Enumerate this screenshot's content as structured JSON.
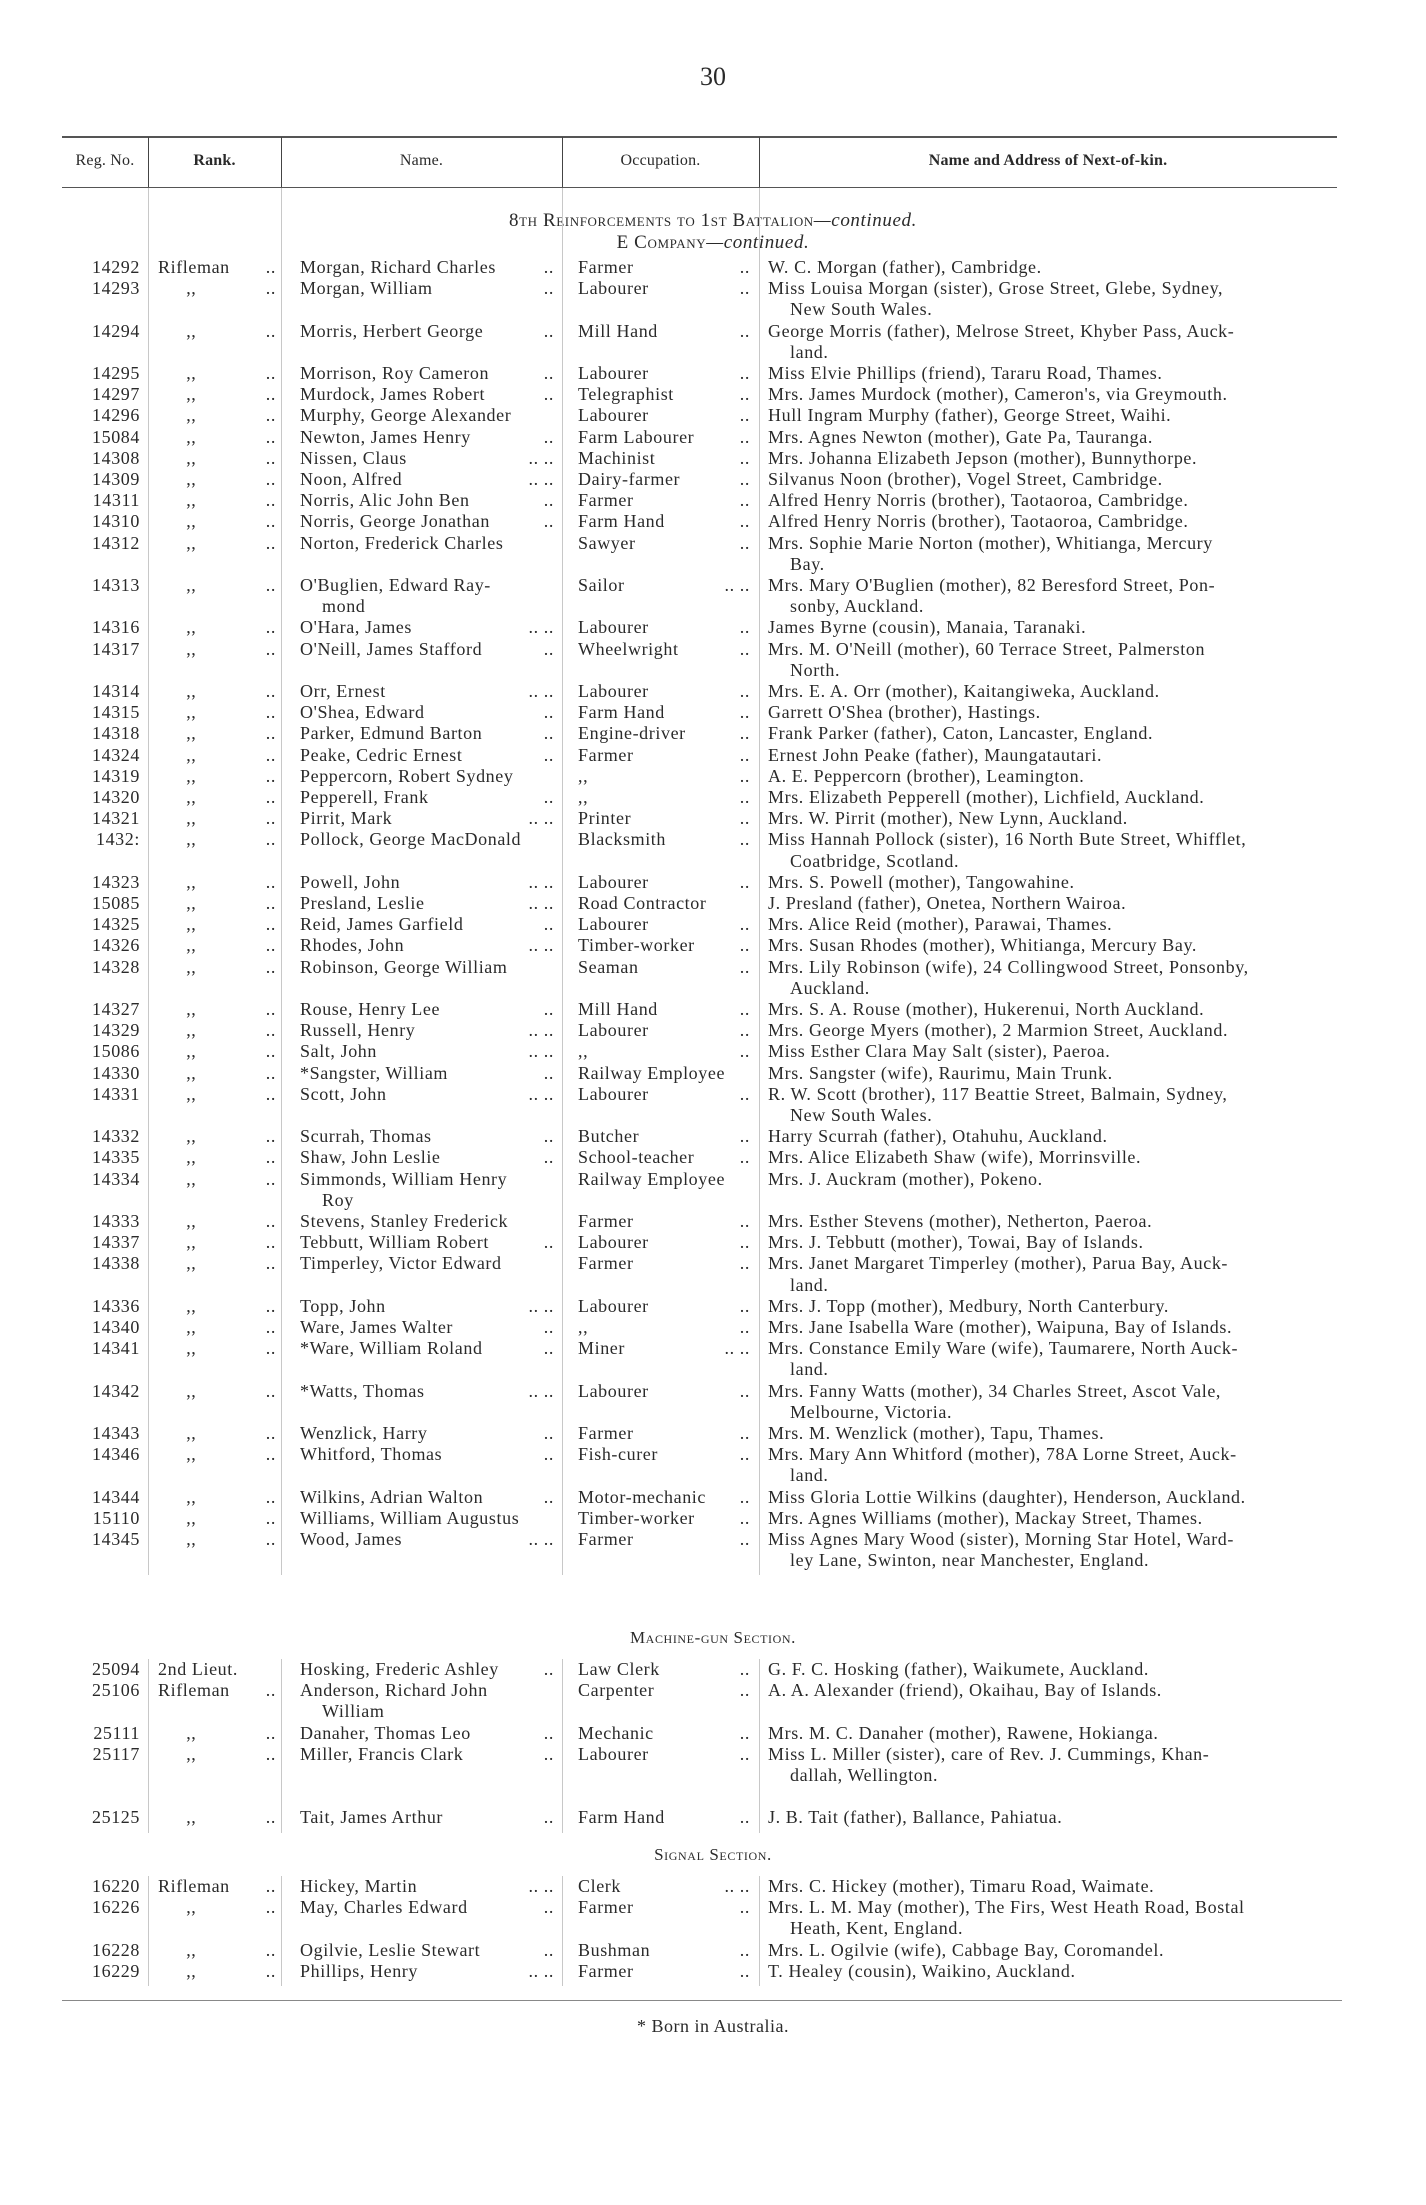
{
  "page_number": "30",
  "columns": {
    "reg_no": "Reg. No.",
    "rank": "Rank.",
    "name": "Name.",
    "occupation": "Occupation.",
    "next_of_kin": "Name and Address of Next-of-kin."
  },
  "heading": {
    "main": "8th Reinforcements to 1st Battalion",
    "main_suffix": "—continued.",
    "company": "E Company",
    "company_suffix": "—continued."
  },
  "sections": [
    {
      "title": "",
      "rows": [
        {
          "reg": "14292",
          "rank": "Rifleman ..",
          "name": [
            "Morgan, Richard Charles.."
          ],
          "occ": "Farmer ..",
          "kin": [
            "W. C. Morgan (father), Cambridge."
          ]
        },
        {
          "reg": "14293",
          "rank": ",, ..",
          "name": [
            "Morgan, William .."
          ],
          "occ": "Labourer ..",
          "kin": [
            "Miss Louisa Morgan (sister), Grose Street, Glebe, Sydney,",
            "New South Wales."
          ]
        },
        {
          "reg": "14294",
          "rank": ",, ..",
          "name": [
            "Morris, Herbert George .."
          ],
          "occ": "Mill Hand ..",
          "kin": [
            "George Morris (father), Melrose Street, Khyber Pass, Auck-",
            "land."
          ]
        },
        {
          "reg": "14295",
          "rank": ",, ..",
          "name": [
            "Morrison, Roy Cameron .."
          ],
          "occ": "Labourer ..",
          "kin": [
            "Miss Elvie Phillips (friend), Tararu Road, Thames."
          ]
        },
        {
          "reg": "14297",
          "rank": ",, ..",
          "name": [
            "Murdock, James Robert .."
          ],
          "occ": "Telegraphist ..",
          "kin": [
            "Mrs. James Murdock (mother), Cameron's, via Greymouth."
          ]
        },
        {
          "reg": "14296",
          "rank": ",, ..",
          "name": [
            "Murphy, George Alexander"
          ],
          "occ": "Labourer ..",
          "kin": [
            "Hull Ingram Murphy (father), George Street, Waihi."
          ]
        },
        {
          "reg": "15084",
          "rank": ",, ..",
          "name": [
            "Newton, James Henry .."
          ],
          "occ": "Farm Labourer ..",
          "kin": [
            "Mrs. Agnes Newton (mother), Gate Pa, Tauranga."
          ]
        },
        {
          "reg": "14308",
          "rank": ",, ..",
          "name": [
            "Nissen, Claus .. .."
          ],
          "occ": "Machinist ..",
          "kin": [
            "Mrs. Johanna Elizabeth Jepson (mother), Bunnythorpe."
          ]
        },
        {
          "reg": "14309",
          "rank": ",, ..",
          "name": [
            "Noon, Alfred .. .."
          ],
          "occ": "Dairy-farmer ..",
          "kin": [
            "Silvanus Noon (brother), Vogel Street, Cambridge."
          ]
        },
        {
          "reg": "14311",
          "rank": ",, ..",
          "name": [
            "Norris, Alic John Ben .."
          ],
          "occ": "Farmer ..",
          "kin": [
            "Alfred Henry Norris (brother), Taotaoroa, Cambridge."
          ]
        },
        {
          "reg": "14310",
          "rank": ",, ..",
          "name": [
            "Norris, George Jonathan .."
          ],
          "occ": "Farm Hand ..",
          "kin": [
            "Alfred Henry Norris (brother), Taotaoroa, Cambridge."
          ]
        },
        {
          "reg": "14312",
          "rank": ",, ..",
          "name": [
            "Norton, Frederick Charles"
          ],
          "occ": "Sawyer ..",
          "kin": [
            "Mrs. Sophie Marie Norton (mother), Whitianga, Mercury",
            "Bay."
          ]
        },
        {
          "reg": "14313",
          "rank": ",, ..",
          "name": [
            "O'Buglien, Edward Ray-",
            "mond"
          ],
          "occ": "Sailor .. ..",
          "kin": [
            "Mrs. Mary O'Buglien (mother), 82 Beresford Street, Pon-",
            "sonby, Auckland."
          ]
        },
        {
          "reg": "14316",
          "rank": ",, ..",
          "name": [
            "O'Hara, James .. .."
          ],
          "occ": "Labourer ..",
          "kin": [
            "James Byrne (cousin), Manaia, Taranaki."
          ]
        },
        {
          "reg": "14317",
          "rank": ",, ..",
          "name": [
            "O'Neill, James Stafford .."
          ],
          "occ": "Wheelwright ..",
          "kin": [
            "Mrs. M. O'Neill (mother), 60 Terrace Street, Palmerston",
            "North."
          ]
        },
        {
          "reg": "14314",
          "rank": ",, ..",
          "name": [
            "Orr, Ernest .. .."
          ],
          "occ": "Labourer ..",
          "kin": [
            "Mrs. E. A. Orr (mother), Kaitangiweka, Auckland."
          ]
        },
        {
          "reg": "14315",
          "rank": ",, ..",
          "name": [
            "O'Shea, Edward .."
          ],
          "occ": "Farm Hand ..",
          "kin": [
            "Garrett O'Shea (brother), Hastings."
          ]
        },
        {
          "reg": "14318",
          "rank": ",, ..",
          "name": [
            "Parker, Edmund Barton .."
          ],
          "occ": "Engine-driver ..",
          "kin": [
            "Frank Parker (father), Caton, Lancaster, England."
          ]
        },
        {
          "reg": "14324",
          "rank": ",, ..",
          "name": [
            "Peake, Cedric Ernest .."
          ],
          "occ": "Farmer ..",
          "kin": [
            "Ernest John Peake (father), Maungatautari."
          ]
        },
        {
          "reg": "14319",
          "rank": ",, ..",
          "name": [
            "Peppercorn, Robert Sydney"
          ],
          "occ": "  ,, ..",
          "kin": [
            "A. E. Peppercorn (brother), Leamington."
          ]
        },
        {
          "reg": "14320",
          "rank": ",, ..",
          "name": [
            "Pepperell, Frank .."
          ],
          "occ": "  ,, ..",
          "kin": [
            "Mrs. Elizabeth Pepperell (mother), Lichfield, Auckland."
          ]
        },
        {
          "reg": "14321",
          "rank": ",, ..",
          "name": [
            "Pirrit, Mark .. .."
          ],
          "occ": "Printer ..",
          "kin": [
            "Mrs. W. Pirrit (mother), New Lynn, Auckland."
          ]
        },
        {
          "reg": "1432:",
          "rank": ",, ..",
          "name": [
            "Pollock, George MacDonald"
          ],
          "occ": "Blacksmith ..",
          "kin": [
            "Miss Hannah Pollock (sister), 16 North Bute Street, Whifflet,",
            "Coatbridge, Scotland."
          ]
        },
        {
          "reg": "14323",
          "rank": ",, ..",
          "name": [
            "Powell, John .. .."
          ],
          "occ": "Labourer ..",
          "kin": [
            "Mrs. S. Powell (mother), Tangowahine."
          ]
        },
        {
          "reg": "15085",
          "rank": ",, ..",
          "name": [
            "Presland, Leslie .. .."
          ],
          "occ": "Road Contractor",
          "kin": [
            "J. Presland (father), Onetea, Northern Wairoa."
          ]
        },
        {
          "reg": "14325",
          "rank": ",, ..",
          "name": [
            "Reid, James Garfield .."
          ],
          "occ": "Labourer ..",
          "kin": [
            "Mrs. Alice Reid (mother), Parawai, Thames."
          ]
        },
        {
          "reg": "14326",
          "rank": ",, ..",
          "name": [
            "Rhodes, John .. .."
          ],
          "occ": "Timber-worker ..",
          "kin": [
            "Mrs. Susan Rhodes (mother), Whitianga, Mercury Bay."
          ]
        },
        {
          "reg": "14328",
          "rank": ",, ..",
          "name": [
            "Robinson, George William"
          ],
          "occ": "Seaman ..",
          "kin": [
            "Mrs. Lily Robinson (wife), 24 Collingwood Street, Ponsonby,",
            "Auckland."
          ]
        },
        {
          "reg": "14327",
          "rank": ",, ..",
          "name": [
            "Rouse, Henry Lee .."
          ],
          "occ": "Mill Hand ..",
          "kin": [
            "Mrs. S. A. Rouse (mother), Hukerenui, North Auckland."
          ]
        },
        {
          "reg": "14329",
          "rank": ",, ..",
          "name": [
            "Russell, Henry .. .."
          ],
          "occ": "Labourer ..",
          "kin": [
            "Mrs. George Myers (mother), 2 Marmion Street, Auckland."
          ]
        },
        {
          "reg": "15086",
          "rank": ",, ..",
          "name": [
            "Salt, John .. .."
          ],
          "occ": "  ,, ..",
          "kin": [
            "Miss Esther Clara May Salt (sister), Paeroa."
          ]
        },
        {
          "reg": "14330",
          "rank": ",, ..",
          "name": [
            "*Sangster, William .."
          ],
          "occ": "Railway Employee",
          "kin": [
            "Mrs. Sangster (wife), Raurimu, Main Trunk."
          ]
        },
        {
          "reg": "14331",
          "rank": ",, ..",
          "name": [
            "Scott, John .. .."
          ],
          "occ": "Labourer ..",
          "kin": [
            "R. W. Scott (brother), 117 Beattie Street, Balmain, Sydney,",
            "New South Wales."
          ]
        },
        {
          "reg": "14332",
          "rank": ",, ..",
          "name": [
            "Scurrah, Thomas .."
          ],
          "occ": "Butcher ..",
          "kin": [
            "Harry Scurrah (father), Otahuhu, Auckland."
          ]
        },
        {
          "reg": "14335",
          "rank": ",, ..",
          "name": [
            "Shaw, John Leslie .."
          ],
          "occ": "School-teacher ..",
          "kin": [
            "Mrs. Alice Elizabeth Shaw (wife), Morrinsville."
          ]
        },
        {
          "reg": "14334",
          "rank": ",, ..",
          "name": [
            "Simmonds, William Henry",
            "Roy"
          ],
          "occ": "Railway Employee",
          "kin": [
            "Mrs. J. Auckram (mother), Pokeno."
          ]
        },
        {
          "reg": "14333",
          "rank": ",, ..",
          "name": [
            "Stevens, Stanley Frederick"
          ],
          "occ": "Farmer ..",
          "kin": [
            "Mrs. Esther Stevens (mother), Netherton, Paeroa."
          ]
        },
        {
          "reg": "14337",
          "rank": ",, ..",
          "name": [
            "Tebbutt, William Robert.."
          ],
          "occ": "Labourer ..",
          "kin": [
            "Mrs. J. Tebbutt (mother), Towai, Bay of Islands."
          ]
        },
        {
          "reg": "14338",
          "rank": ",, ..",
          "name": [
            "Timperley, Victor Edward"
          ],
          "occ": "Farmer ..",
          "kin": [
            "Mrs. Janet Margaret Timperley (mother), Parua Bay, Auck-",
            "land."
          ]
        },
        {
          "reg": "14336",
          "rank": ",, ..",
          "name": [
            "Topp, John .. .."
          ],
          "occ": "Labourer ..",
          "kin": [
            "Mrs. J. Topp (mother), Medbury, North Canterbury."
          ]
        },
        {
          "reg": "14340",
          "rank": ",, ..",
          "name": [
            "Ware, James Walter .."
          ],
          "occ": "  ,, ..",
          "kin": [
            "Mrs. Jane Isabella Ware (mother), Waipuna, Bay of Islands."
          ]
        },
        {
          "reg": "14341",
          "rank": ",, ..",
          "name": [
            "*Ware, William Roland .."
          ],
          "occ": "Miner .. ..",
          "kin": [
            "Mrs. Constance Emily Ware (wife), Taumarere, North Auck-",
            "land."
          ]
        },
        {
          "reg": "14342",
          "rank": ",, ..",
          "name": [
            "*Watts, Thomas .. .."
          ],
          "occ": "Labourer ..",
          "kin": [
            "Mrs. Fanny Watts (mother), 34 Charles Street, Ascot Vale,",
            "Melbourne, Victoria."
          ]
        },
        {
          "reg": "14343",
          "rank": ",, ..",
          "name": [
            "Wenzlick, Harry .."
          ],
          "occ": "Farmer ..",
          "kin": [
            "Mrs. M. Wenzlick (mother), Tapu, Thames."
          ]
        },
        {
          "reg": "14346",
          "rank": ",, ..",
          "name": [
            "Whitford, Thomas .."
          ],
          "occ": "Fish-curer ..",
          "kin": [
            "Mrs. Mary Ann Whitford (mother), 78A Lorne Street, Auck-",
            "land."
          ]
        },
        {
          "reg": "14344",
          "rank": ",, ..",
          "name": [
            "Wilkins, Adrian Walton .."
          ],
          "occ": "Motor-mechanic..",
          "kin": [
            "Miss Gloria Lottie Wilkins (daughter), Henderson, Auckland."
          ]
        },
        {
          "reg": "15110",
          "rank": ",, ..",
          "name": [
            "Williams, William Augustus"
          ],
          "occ": "Timber-worker ..",
          "kin": [
            "Mrs. Agnes Williams (mother), Mackay Street, Thames."
          ]
        },
        {
          "reg": "14345",
          "rank": ",, ..",
          "name": [
            "Wood, James .. .."
          ],
          "occ": "Farmer ..",
          "kin": [
            "Miss Agnes Mary Wood (sister), Morning Star Hotel, Ward-",
            "ley Lane, Swinton, near Manchester, England."
          ]
        }
      ]
    },
    {
      "title": "Machine-gun Section.",
      "rows": [
        {
          "reg": "25094",
          "rank": "2nd Lieut.",
          "name": [
            "Hosking, Frederic Ashley.."
          ],
          "occ": "Law Clerk ..",
          "kin": [
            "G. F. C. Hosking (father), Waikumete, Auckland."
          ]
        },
        {
          "reg": "25106",
          "rank": "Rifleman ..",
          "name": [
            "Anderson, Richard John",
            "William"
          ],
          "occ": "Carpenter ..",
          "kin": [
            "A. A. Alexander (friend), Okaihau, Bay of Islands."
          ]
        },
        {
          "reg": "25111",
          "rank": ",, ..",
          "name": [
            "Danaher, Thomas Leo .."
          ],
          "occ": "Mechanic ..",
          "kin": [
            "Mrs. M. C. Danaher (mother), Rawene, Hokianga."
          ]
        },
        {
          "reg": "25117",
          "rank": ",, ..",
          "name": [
            "Miller, Francis Clark .."
          ],
          "occ": "Labourer ..",
          "kin": [
            "Miss L. Miller (sister), care of Rev. J. Cummings, Khan-",
            "dallah, Wellington."
          ]
        },
        {
          "reg": "25125",
          "rank": ",, ..",
          "name": [
            "Tait, James Arthur .."
          ],
          "occ": "Farm Hand ..",
          "kin": [
            "J. B. Tait (father), Ballance, Pahiatua."
          ]
        }
      ]
    },
    {
      "title": "Signal Section.",
      "rows": [
        {
          "reg": "16220",
          "rank": "Rifleman ..",
          "name": [
            "Hickey, Martin .. .."
          ],
          "occ": "Clerk .. ..",
          "kin": [
            "Mrs. C. Hickey (mother), Timaru Road, Waimate."
          ]
        },
        {
          "reg": "16226",
          "rank": ",, ..",
          "name": [
            "May, Charles Edward .."
          ],
          "occ": "Farmer ..",
          "kin": [
            "Mrs. L. M. May (mother), The Firs, West Heath Road, Bostal",
            "Heath, Kent, England."
          ]
        },
        {
          "reg": "16228",
          "rank": ",, ..",
          "name": [
            "Ogilvie, Leslie Stewart .."
          ],
          "occ": "Bushman ..",
          "kin": [
            "Mrs. L. Ogilvie (wife), Cabbage Bay, Coromandel."
          ]
        },
        {
          "reg": "16229",
          "rank": ",, ..",
          "name": [
            "Phillips, Henry .. .."
          ],
          "occ": "Farmer ..",
          "kin": [
            "T. Healey (cousin), Waikino, Auckland."
          ]
        }
      ]
    }
  ],
  "footnote": "* Born in Australia."
}
